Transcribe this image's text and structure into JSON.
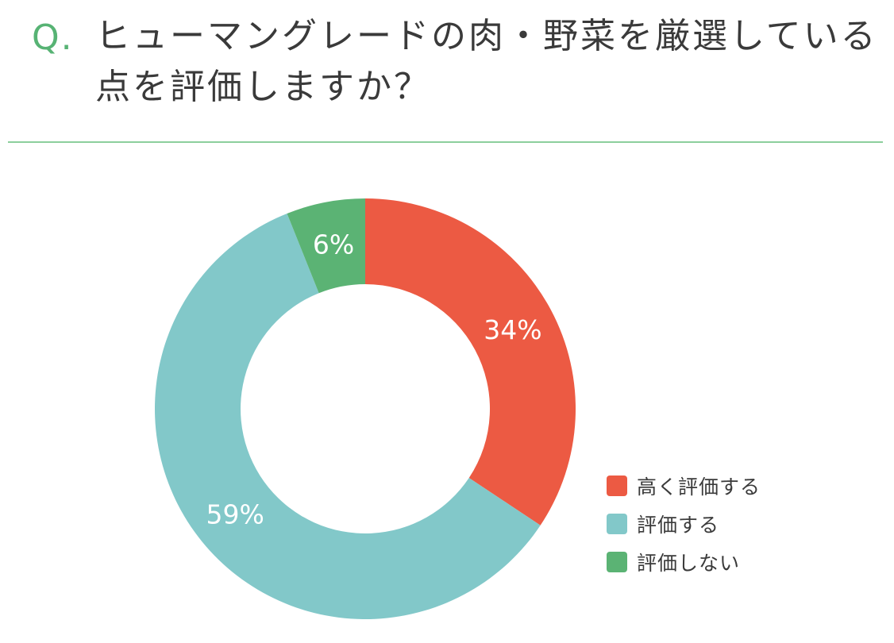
{
  "question": {
    "mark": "Q.",
    "text": "ヒューマングレードの肉・野菜を厳選している点を評価しますか？"
  },
  "colors": {
    "accent": "#57b374",
    "divider": "#8ccf9c",
    "slice_high": "#ec5a43",
    "slice_mid": "#82c8c9",
    "slice_low": "#5bb374"
  },
  "chart_data": {
    "type": "pie",
    "donut": true,
    "categories": [
      "高く評価する",
      "評価する",
      "評価しない"
    ],
    "values": [
      34,
      59,
      6
    ],
    "labels": [
      "34%",
      "59%",
      "6%"
    ],
    "colors": [
      "#ec5a43",
      "#82c8c9",
      "#5bb374"
    ],
    "legend_position": "bottom-right"
  }
}
